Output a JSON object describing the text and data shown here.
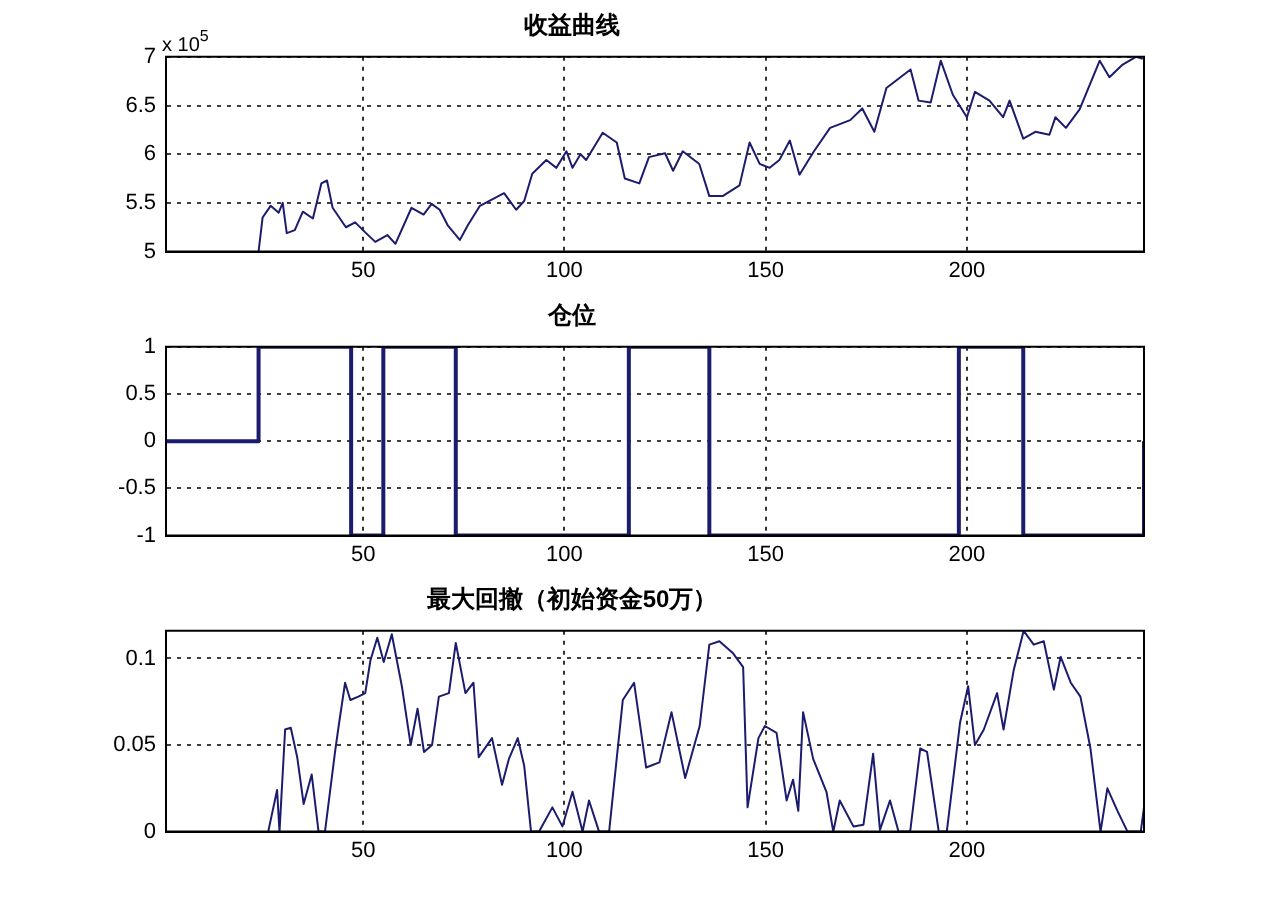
{
  "chart_data": [
    {
      "type": "line",
      "title": "收益曲线",
      "annotations": [
        "x 10$^{5}$"
      ],
      "color": "#1c1c6e",
      "xlim": [
        1,
        244
      ],
      "xticks": [
        50,
        100,
        150,
        200
      ],
      "ylim": [
        5,
        7
      ],
      "yticks": [
        5,
        5.5,
        6,
        6.5,
        7
      ],
      "grid": true,
      "x": [
        24,
        25,
        27,
        29,
        30,
        31,
        33,
        35,
        37.5,
        39.6,
        41,
        42.4,
        45.7,
        48,
        50.7,
        53,
        56,
        58,
        62,
        65,
        67,
        69,
        71,
        74,
        76,
        79,
        85,
        88,
        90,
        92,
        95.5,
        98,
        100.5,
        102,
        104,
        105.4,
        109.5,
        113,
        115,
        118.6,
        121,
        125,
        127,
        129.4,
        133.5,
        136,
        139.3,
        143.5,
        146,
        148.5,
        151,
        153.4,
        156,
        158.4,
        162,
        166,
        171,
        174,
        177,
        180,
        186,
        188,
        191,
        193.5,
        196.5,
        200,
        202,
        205.6,
        209,
        210.6,
        214,
        217,
        220.5,
        222,
        224.6,
        228,
        233,
        235.4,
        238.7,
        242,
        243.7
      ],
      "values": [
        5,
        5.35,
        5.47,
        5.4,
        5.5,
        5.19,
        5.22,
        5.41,
        5.34,
        5.7,
        5.73,
        5.45,
        5.25,
        5.3,
        5.19,
        5.1,
        5.17,
        5.08,
        5.45,
        5.38,
        5.49,
        5.43,
        5.27,
        5.12,
        5.27,
        5.47,
        5.6,
        5.43,
        5.52,
        5.8,
        5.94,
        5.86,
        6.03,
        5.86,
        6,
        5.94,
        6.22,
        6.12,
        5.75,
        5.7,
        5.97,
        6.01,
        5.83,
        6.03,
        5.9,
        5.57,
        5.57,
        5.68,
        6.12,
        5.9,
        5.86,
        5.94,
        6.14,
        5.79,
        6.03,
        6.27,
        6.35,
        6.47,
        6.23,
        6.68,
        6.87,
        6.55,
        6.53,
        6.96,
        6.61,
        6.38,
        6.64,
        6.55,
        6.38,
        6.55,
        6.16,
        6.23,
        6.2,
        6.38,
        6.27,
        6.46,
        6.96,
        6.79,
        6.92,
        7,
        6.98
      ]
    },
    {
      "type": "step",
      "title": "仓位",
      "color": "#1c1c6e",
      "xlim": [
        1,
        244
      ],
      "xticks": [
        50,
        100,
        150,
        200
      ],
      "ylim": [
        -1,
        1
      ],
      "yticks": [
        -1,
        -0.5,
        0,
        0.5,
        1
      ],
      "grid": true,
      "x": [
        1,
        24,
        47,
        55,
        73,
        116,
        136,
        198,
        214,
        244
      ],
      "values": [
        0,
        1,
        -1,
        1,
        -1,
        1,
        -1,
        1,
        -1,
        0
      ]
    },
    {
      "type": "line",
      "title": "最大回撤（初始资金50万）",
      "color": "#1c1c6e",
      "xlim": [
        1,
        244
      ],
      "xticks": [
        50,
        100,
        150,
        200
      ],
      "ylim": [
        0,
        0.116
      ],
      "yticks": [
        0,
        0.05,
        0.1
      ],
      "grid": true,
      "x": [
        26.4,
        28.6,
        29.2,
        30.6,
        32,
        33.6,
        35.2,
        37.2,
        38.9,
        40.5,
        43,
        43.9,
        45.5,
        46.8,
        48.8,
        50.5,
        51.8,
        53.5,
        55.1,
        57.1,
        59.6,
        61.8,
        63.5,
        65.1,
        67.1,
        68.8,
        71.3,
        73,
        75.4,
        77.4,
        78.7,
        82,
        84.5,
        86.2,
        88.4,
        90,
        91.7,
        93.7,
        97,
        99.5,
        102,
        104.5,
        106.1,
        108.6,
        111.1,
        114.5,
        117.3,
        120.3,
        123.6,
        126.6,
        130,
        133.6,
        136,
        138.5,
        141.9,
        144.4,
        145.5,
        148.2,
        149.8,
        152.7,
        155.2,
        156.8,
        158.1,
        159.3,
        161.8,
        165.1,
        166.8,
        168.4,
        171.8,
        174.3,
        176.7,
        178.4,
        180.9,
        183,
        185.9,
        188.4,
        190.1,
        193,
        195,
        198.3,
        200.3,
        202,
        204.2,
        207.5,
        209.1,
        211.6,
        214.1,
        216.6,
        219.1,
        221.6,
        223.3,
        225.8,
        228.2,
        230.7,
        233.2,
        234.9,
        237.4,
        239.9,
        243.2,
        244
      ],
      "values": [
        0,
        0.024,
        0,
        0.059,
        0.06,
        0.043,
        0.016,
        0.033,
        0,
        0,
        0.046,
        0.061,
        0.086,
        0.076,
        0.078,
        0.08,
        0.099,
        0.112,
        0.098,
        0.114,
        0.084,
        0.05,
        0.071,
        0.046,
        0.05,
        0.078,
        0.08,
        0.109,
        0.08,
        0.086,
        0.043,
        0.054,
        0.027,
        0.042,
        0.054,
        0.038,
        0,
        0,
        0.014,
        0.003,
        0.023,
        0,
        0.018,
        0,
        0,
        0.076,
        0.086,
        0.037,
        0.04,
        0.069,
        0.031,
        0.061,
        0.108,
        0.11,
        0.103,
        0.095,
        0.014,
        0.054,
        0.061,
        0.057,
        0.018,
        0.03,
        0.012,
        0.069,
        0.042,
        0.023,
        0,
        0.018,
        0.003,
        0.004,
        0.045,
        0.001,
        0.018,
        0,
        0,
        0.048,
        0.046,
        0,
        0,
        0.063,
        0.084,
        0.05,
        0.059,
        0.08,
        0.059,
        0.093,
        0.116,
        0.108,
        0.11,
        0.082,
        0.101,
        0.086,
        0.078,
        0.048,
        0,
        0.025,
        0.012,
        0,
        0,
        0.014
      ]
    }
  ]
}
